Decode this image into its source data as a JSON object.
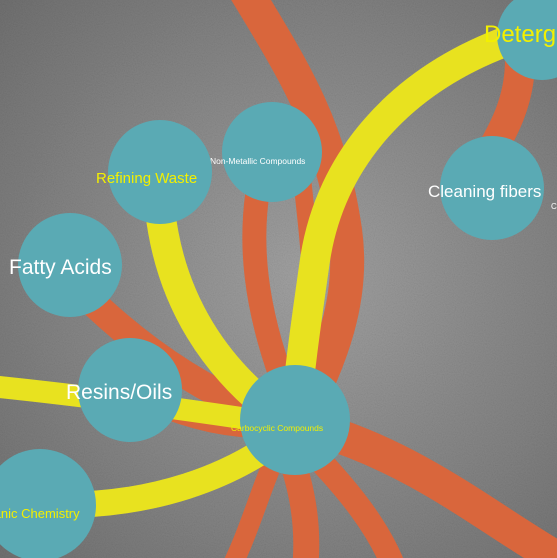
{
  "colors": {
    "background": "#8f8f8f",
    "node_fill": "#5aaab4",
    "link_orange": "#d9663c",
    "link_yellow": "#e8e21f",
    "label_white": "#ffffff",
    "label_yellow": "#f3f000"
  },
  "nodes": {
    "detergents": {
      "label": "Detergents"
    },
    "cleaning_fibers": {
      "label": "Cleaning fibers",
      "sublabel": "C"
    },
    "non_metallic": {
      "label": "Non-Metallic Compounds"
    },
    "refining_waste": {
      "label": "Refining Waste"
    },
    "fatty_acids": {
      "label": "Fatty Acids"
    },
    "resins_oils": {
      "label": "Resins/Oils"
    },
    "carbocyclic": {
      "label": "Carbocyclic Compounds"
    },
    "organic_chemistry": {
      "label": "Organic Chemistry"
    }
  },
  "link_types": [
    "orange",
    "yellow"
  ]
}
